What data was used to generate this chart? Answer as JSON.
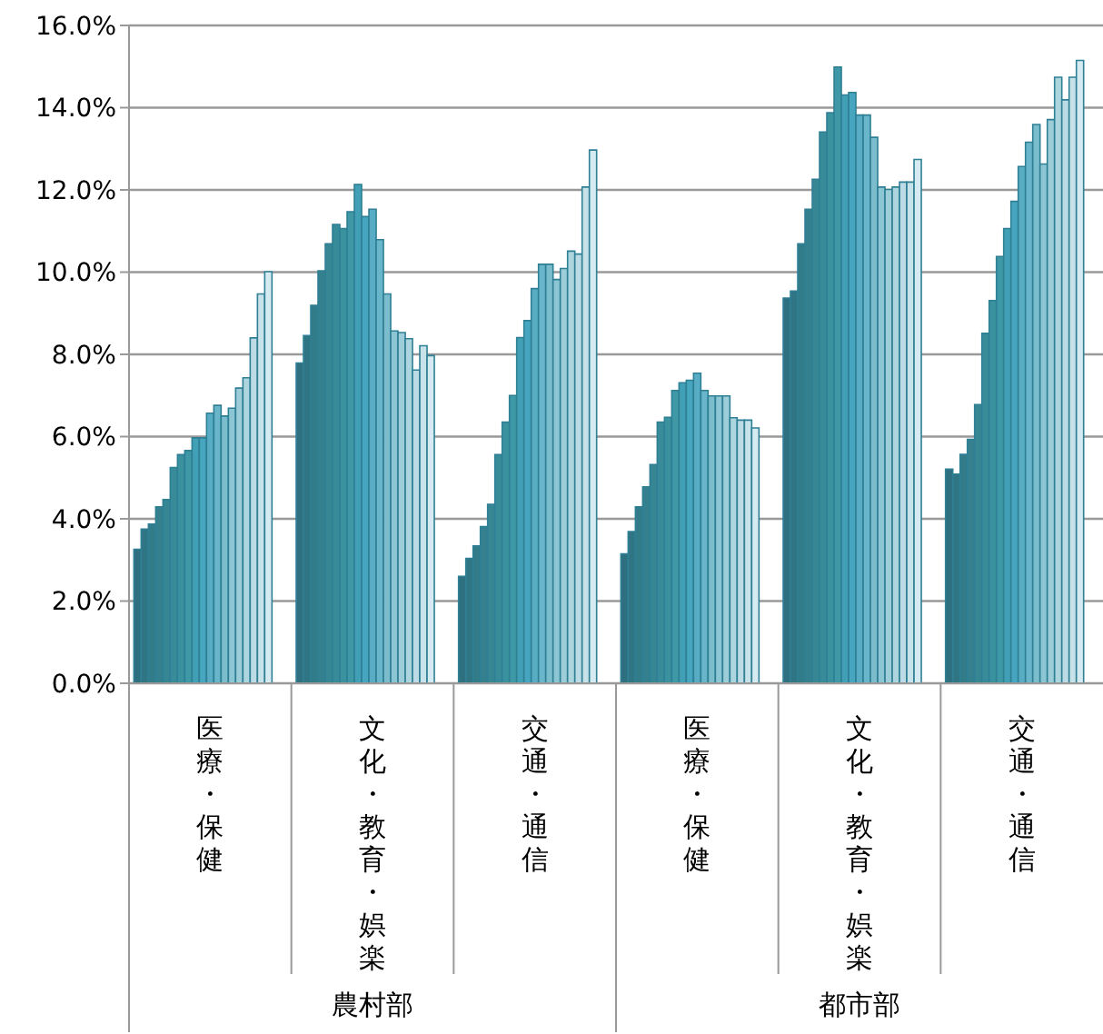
{
  "chart_data": {
    "type": "bar",
    "categories": [
      "医療・保健",
      "文化・教育・娯楽",
      "交通・通信",
      "医療・保健",
      "文化・教育・娯楽",
      "交通・通信"
    ],
    "annotations": [
      "農村部",
      "都市部"
    ],
    "ylim": [
      0,
      16
    ],
    "yticks": [
      {
        "value": 0,
        "label": "0.0%"
      },
      {
        "value": 2,
        "label": "2.0%"
      },
      {
        "value": 4,
        "label": "4.0%"
      },
      {
        "value": 6,
        "label": "6.0%"
      },
      {
        "value": 8,
        "label": "8.0%"
      },
      {
        "value": 10,
        "label": "10.0%"
      },
      {
        "value": 12,
        "label": "12.0%"
      },
      {
        "value": 14,
        "label": "14.0%"
      },
      {
        "value": 16,
        "label": "16.0%"
      }
    ],
    "grid": "y",
    "series": [
      {
        "color": "#2e6f80",
        "values": [
          3.26,
          7.79,
          2.6,
          3.15,
          9.37,
          5.21
        ]
      },
      {
        "color": "#307584",
        "values": [
          3.75,
          8.46,
          3.04,
          3.69,
          9.54,
          5.09
        ]
      },
      {
        "color": "#327b89",
        "values": [
          3.87,
          9.19,
          3.34,
          4.29,
          10.69,
          5.57
        ]
      },
      {
        "color": "#34808e",
        "values": [
          4.29,
          10.03,
          3.81,
          4.78,
          11.53,
          5.93
        ]
      },
      {
        "color": "#368693",
        "values": [
          4.47,
          10.69,
          4.35,
          5.32,
          12.26,
          6.78
        ]
      },
      {
        "color": "#388c99",
        "values": [
          5.25,
          11.16,
          5.56,
          6.35,
          13.41,
          8.51
        ]
      },
      {
        "color": "#3b929f",
        "values": [
          5.56,
          11.06,
          6.35,
          6.47,
          13.88,
          9.31
        ]
      },
      {
        "color": "#3e98a6",
        "values": [
          5.66,
          11.47,
          7.0,
          7.12,
          14.99,
          10.38
        ]
      },
      {
        "color": "#41a0b5",
        "values": [
          5.97,
          12.13,
          8.41,
          7.31,
          14.31,
          11.06
        ]
      },
      {
        "color": "#46a6c0",
        "values": [
          5.97,
          11.35,
          8.82,
          7.37,
          14.37,
          11.72
        ]
      },
      {
        "color": "#58adc4",
        "values": [
          6.57,
          11.53,
          9.6,
          7.54,
          13.82,
          12.57
        ]
      },
      {
        "color": "#69b5c9",
        "values": [
          6.76,
          10.79,
          10.19,
          7.12,
          13.82,
          13.16
        ]
      },
      {
        "color": "#7bbdcd",
        "values": [
          6.5,
          9.47,
          10.19,
          6.99,
          13.28,
          13.59
        ]
      },
      {
        "color": "#8cc5d3",
        "values": [
          6.69,
          8.57,
          9.82,
          6.99,
          12.07,
          12.63
        ]
      },
      {
        "color": "#9dcdd9",
        "values": [
          7.18,
          8.53,
          10.09,
          6.99,
          12.01,
          13.71
        ]
      },
      {
        "color": "#add5de",
        "values": [
          7.43,
          8.38,
          10.51,
          6.46,
          12.07,
          14.74
        ]
      },
      {
        "color": "#bcdbe4",
        "values": [
          8.4,
          7.62,
          10.44,
          6.4,
          12.19,
          14.19
        ]
      },
      {
        "color": "#c8e2e9",
        "values": [
          9.47,
          8.21,
          12.07,
          6.4,
          12.19,
          14.74
        ]
      },
      {
        "color": "#d6ebf1",
        "values": [
          10.01,
          7.97,
          12.97,
          6.21,
          12.74,
          15.15
        ]
      }
    ]
  }
}
